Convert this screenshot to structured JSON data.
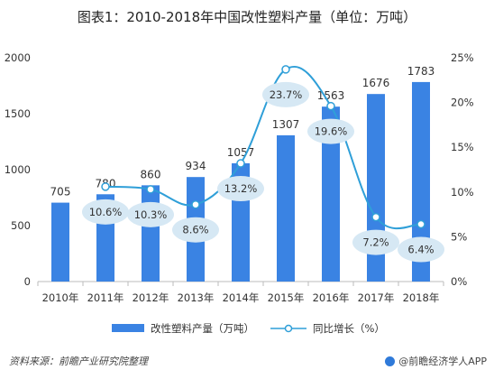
{
  "title": "图表1：2010-2018年中国改性塑料产量（单位：万吨）",
  "chart_data": {
    "type": "bar",
    "categories": [
      "2010年",
      "2011年",
      "2012年",
      "2013年",
      "2014年",
      "2015年",
      "2016年",
      "2017年",
      "2018年"
    ],
    "series": [
      {
        "name": "改性塑料产量（万吨）",
        "type": "bar",
        "axis": "left",
        "values": [
          705,
          780,
          860,
          934,
          1057,
          1307,
          1563,
          1676,
          1783
        ],
        "labels": [
          "705",
          "780",
          "860",
          "934",
          "1057",
          "1307",
          "1563",
          "1676",
          "1783"
        ],
        "color": "#3a83e3"
      },
      {
        "name": "同比增长（%）",
        "type": "line",
        "axis": "right",
        "values": [
          null,
          10.6,
          10.3,
          8.6,
          13.2,
          23.7,
          19.6,
          7.2,
          6.4
        ],
        "labels": [
          "",
          "10.6%",
          "10.3%",
          "8.6%",
          "13.2%",
          "23.7%",
          "19.6%",
          "7.2%",
          "6.4%"
        ],
        "color": "#2f9fd8"
      }
    ],
    "y_left": {
      "min": 0,
      "max": 2000,
      "ticks": [
        "0",
        "500",
        "1000",
        "1500",
        "2000"
      ]
    },
    "y_right": {
      "min": 0,
      "max": 25,
      "ticks": [
        "0%",
        "5%",
        "10%",
        "15%",
        "20%",
        "25%"
      ]
    },
    "grid": false,
    "legend_position": "bottom"
  },
  "footer": {
    "source": "资料来源：前瞻产业研究院整理",
    "brand": "@前瞻经济学人APP"
  }
}
